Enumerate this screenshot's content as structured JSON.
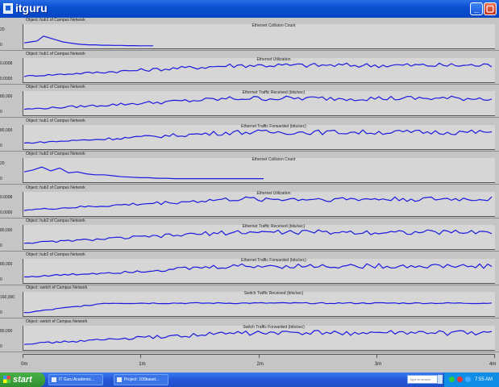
{
  "window": {
    "title": "itguru",
    "min_label": "_",
    "max_label": "▢"
  },
  "panels": [
    {
      "object": "Object: hub1 of Campus Network",
      "statistic": "Ethernet Collision Count",
      "y_top": "20",
      "y_bottom": "0",
      "color": "#1a1ae0",
      "trace_type": "collision",
      "values": [
        0.2,
        0.25,
        0.3,
        0.55,
        0.45,
        0.35,
        0.25,
        0.2,
        0.15,
        0.12,
        0.1,
        0.1,
        0.08,
        0.08,
        0.07,
        0.07,
        0.06,
        0.06,
        0.05,
        0.05,
        0.05
      ]
    },
    {
      "object": "Object: hub1 of Campus Network",
      "statistic": "Ethernet Utilization",
      "y_top": "0.0008",
      "y_bottom": "0.0000",
      "color": "#1a1ae0",
      "trace_type": "rising"
    },
    {
      "object": "Object: hub1 of Campus Network",
      "statistic": "Ethernet Traffic Received (bits/sec)",
      "y_top": "80,000",
      "y_bottom": "0",
      "color": "#1a1ae0",
      "trace_type": "rising"
    },
    {
      "object": "Object: hub1 of Campus Network",
      "statistic": "Ethernet Traffic Forwarded (bits/sec)",
      "y_top": "80,000",
      "y_bottom": "0",
      "color": "#1a1ae0",
      "trace_type": "rising"
    },
    {
      "object": "Object: hub2 of Campus Network",
      "statistic": "Ethernet Collision Count",
      "y_top": "20",
      "y_bottom": "0",
      "color": "#1a1ae0",
      "trace_type": "collision2",
      "values": [
        0.45,
        0.55,
        0.7,
        0.5,
        0.65,
        0.4,
        0.45,
        0.35,
        0.3,
        0.3,
        0.25,
        0.2,
        0.18,
        0.15,
        0.15,
        0.12,
        0.12,
        0.1,
        0.1,
        0.1,
        0.1,
        0.1,
        0.1,
        0.1,
        0.1,
        0.1,
        0.1,
        0.1
      ]
    },
    {
      "object": "Object: hub2 of Campus Network",
      "statistic": "Ethernet Utilization",
      "y_top": "0.0008",
      "y_bottom": "0.0000",
      "color": "#1a1ae0",
      "trace_type": "rising"
    },
    {
      "object": "Object: hub2 of Campus Network",
      "statistic": "Ethernet Traffic Received (bits/sec)",
      "y_top": "80,000",
      "y_bottom": "0",
      "color": "#1a1ae0",
      "trace_type": "rising"
    },
    {
      "object": "Object: hub2 of Campus Network",
      "statistic": "Ethernet Traffic Forwarded (bits/sec)",
      "y_top": "80,000",
      "y_bottom": "0",
      "color": "#1a1ae0",
      "trace_type": "rising"
    },
    {
      "object": "Object: switch of Campus Network",
      "statistic": "Switch Traffic Received (bits/sec)",
      "y_top": "160,000",
      "y_bottom": "0",
      "color": "#1a1ae0",
      "trace_type": "flat"
    },
    {
      "object": "Object: switch of Campus Network",
      "statistic": "Switch Traffic Forwarded (bits/sec)",
      "y_top": "80,000",
      "y_bottom": "0",
      "color": "#1a1ae0",
      "trace_type": "rising"
    }
  ],
  "x_axis": {
    "labels": [
      "0m",
      "1m",
      "2m",
      "3m",
      "4m"
    ]
  },
  "taskbar": {
    "start_label": "start",
    "tasks": [
      {
        "label": "IT Guru Academic..."
      },
      {
        "label": "Project: 100baset..."
      }
    ],
    "search_placeholder": "Type to search",
    "clock": "7:55 AM"
  }
}
